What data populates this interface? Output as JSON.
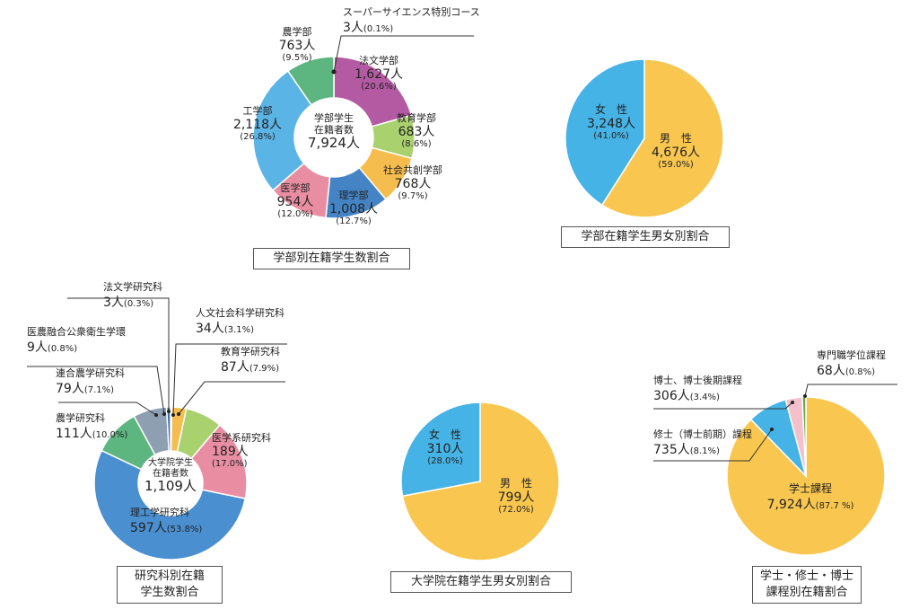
{
  "chart_data": [
    {
      "id": "undergrad_faculty",
      "type": "pie",
      "donut": true,
      "caption": "学部別在籍学生数割合",
      "center_label": [
        "学部学生",
        "在籍者数"
      ],
      "center_value": "7,924人",
      "slices": [
        {
          "name": "スーパーサイエンス特別コース",
          "value": "3人",
          "percent": "(0.1%)",
          "count": 3,
          "color": "#3f8a57"
        },
        {
          "name": "法文学部",
          "value": "1,627人",
          "percent": "(20.6%)",
          "count": 1627,
          "color": "#b45aa2"
        },
        {
          "name": "教育学部",
          "value": "683人",
          "percent": "(8.6%)",
          "count": 683,
          "color": "#a9d16e"
        },
        {
          "name": "社会共創学部",
          "value": "768人",
          "percent": "(9.7%)",
          "count": 768,
          "color": "#f5bc4e"
        },
        {
          "name": "理学部",
          "value": "1,008人",
          "percent": "(12.7%)",
          "count": 1008,
          "color": "#4584c4"
        },
        {
          "name": "医学部",
          "value": "954人",
          "percent": "(12.0%)",
          "count": 954,
          "color": "#e98ea2"
        },
        {
          "name": "工学部",
          "value": "2,118人",
          "percent": "(26.8%)",
          "count": 2118,
          "color": "#5bb4e6"
        },
        {
          "name": "農学部",
          "value": "763人",
          "percent": "(9.5%)",
          "count": 763,
          "color": "#5db57f"
        }
      ]
    },
    {
      "id": "undergrad_gender",
      "type": "pie",
      "caption": "学部在籍学生男女別割合",
      "slices": [
        {
          "name": "男　性",
          "value": "4,676人",
          "percent": "(59.0%)",
          "count": 4676,
          "color": "#f9c74f"
        },
        {
          "name": "女　性",
          "value": "3,248人",
          "percent": "(41.0%)",
          "count": 3248,
          "color": "#46b3e6"
        }
      ]
    },
    {
      "id": "grad_school",
      "type": "pie",
      "donut": true,
      "caption": "研究科別在籍学生数割合",
      "caption_lines": [
        "研究科別在籍",
        "学生数割合"
      ],
      "center_label": [
        "大学院学生",
        "在籍者数"
      ],
      "center_value": "1,109人",
      "slices": [
        {
          "name": "法文学研究科",
          "value": "3人",
          "percent": "(0.3%)",
          "count": 3,
          "color": "#b45aa2"
        },
        {
          "name": "人文社会科学研究科",
          "value": "34人",
          "percent": "(3.1%)",
          "count": 34,
          "color": "#f5bc4e"
        },
        {
          "name": "教育学研究科",
          "value": "87人",
          "percent": "(7.9%)",
          "count": 87,
          "color": "#a9d16e"
        },
        {
          "name": "医学系研究科",
          "value": "189人",
          "percent": "(17.0%)",
          "count": 189,
          "color": "#e98ea2"
        },
        {
          "name": "理工学研究科",
          "value": "597人",
          "percent": "(53.8%)",
          "count": 597,
          "color": "#4a8fd0"
        },
        {
          "name": "農学研究科",
          "value": "111人",
          "percent": "(10.0%)",
          "count": 111,
          "color": "#5db57f"
        },
        {
          "name": "連合農学研究科",
          "value": "79人",
          "percent": "(7.1%)",
          "count": 79,
          "color": "#8e9fb2"
        },
        {
          "name": "医農融合公衆衛生学環",
          "value": "9人",
          "percent": "(0.8%)",
          "count": 9,
          "color": "#3e6fa8"
        }
      ]
    },
    {
      "id": "grad_gender",
      "type": "pie",
      "caption": "大学院在籍学生男女別割合",
      "slices": [
        {
          "name": "男　性",
          "value": "799人",
          "percent": "(72.0%)",
          "count": 799,
          "color": "#f9c74f"
        },
        {
          "name": "女　性",
          "value": "310人",
          "percent": "(28.0%)",
          "count": 310,
          "color": "#46b3e6"
        }
      ]
    },
    {
      "id": "degree_program",
      "type": "pie",
      "caption": "学士・修士・博士課程別在籍割合",
      "caption_lines": [
        "学士・修士・博士",
        "課程別在籍割合"
      ],
      "slices": [
        {
          "name": "学士課程",
          "value": "7,924人",
          "percent": "(87.7 %)",
          "count": 7924,
          "color": "#f9c74f"
        },
        {
          "name": "修士（博士前期）課程",
          "value": "735人",
          "percent": "(8.1%)",
          "count": 735,
          "color": "#46b3e6"
        },
        {
          "name": "博士、博士後期課程",
          "value": "306人",
          "percent": "(3.4%)",
          "count": 306,
          "color": "#f3c0cc"
        },
        {
          "name": "専門職学位課程",
          "value": "68人",
          "percent": "(0.8%)",
          "count": 68,
          "color": "#6aa84f"
        }
      ]
    }
  ]
}
